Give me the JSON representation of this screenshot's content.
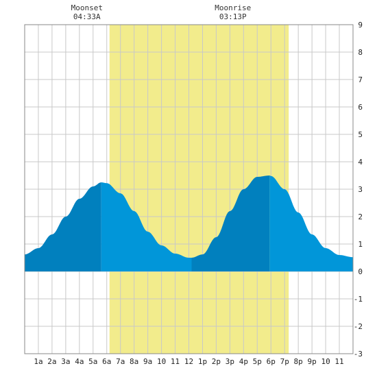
{
  "chart_data": {
    "type": "area",
    "title": "",
    "xlabel": "",
    "ylabel": "",
    "x_ticks": [
      "1a",
      "2a",
      "3a",
      "4a",
      "5a",
      "6a",
      "7a",
      "8a",
      "9a",
      "10",
      "11",
      "12",
      "1p",
      "2p",
      "3p",
      "4p",
      "5p",
      "6p",
      "7p",
      "8p",
      "9p",
      "10",
      "11"
    ],
    "y_ticks": [
      "9",
      "8",
      "7",
      "6",
      "5",
      "4",
      "3",
      "2",
      "1",
      "0",
      "-1",
      "-2",
      "-3"
    ],
    "ylim": [
      -3,
      9
    ],
    "xlim_hours": [
      0,
      24
    ],
    "grid": true,
    "daylight_hours": [
      6.2,
      19.3
    ],
    "moon_events": [
      {
        "label": "Moonset",
        "time": "04:33A",
        "hour": 4.55
      },
      {
        "label": "Moonrise",
        "time": "03:13P",
        "hour": 15.22
      }
    ],
    "series": [
      {
        "x": [
          0,
          1,
          2,
          3,
          4,
          5,
          5.6,
          6,
          7,
          8,
          9,
          10,
          11,
          12,
          12.2,
          13,
          14,
          15,
          16,
          17,
          17.9,
          18,
          19,
          20,
          21,
          22,
          23,
          24
        ],
        "values": [
          0.62,
          0.85,
          1.35,
          2.0,
          2.65,
          3.1,
          3.25,
          3.22,
          2.85,
          2.2,
          1.45,
          0.95,
          0.65,
          0.5,
          0.5,
          0.62,
          1.25,
          2.2,
          3.0,
          3.45,
          3.5,
          3.48,
          3.0,
          2.15,
          1.35,
          0.85,
          0.6,
          0.52
        ]
      }
    ],
    "tide_extremes_hours": [
      5.6,
      12.2,
      17.9
    ],
    "colors": {
      "daylight": "#f2ec8c",
      "tide_dark": "#0180be",
      "tide_light": "#0196d9",
      "grid": "#c8c8c8",
      "frame": "#888888"
    }
  }
}
